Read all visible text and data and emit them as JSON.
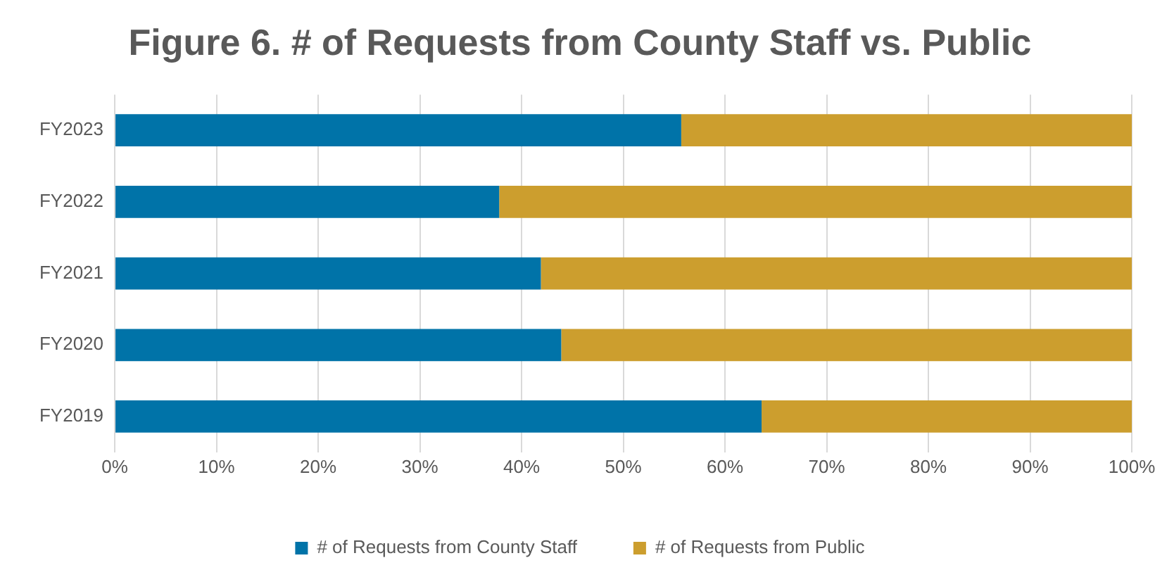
{
  "chart_data": {
    "type": "bar",
    "title": "Figure 6. # of Requests from County Staff vs. Public",
    "orientation": "horizontal",
    "stacked": true,
    "categories": [
      "FY2023",
      "FY2022",
      "FY2021",
      "FY2020",
      "FY2019"
    ],
    "series": [
      {
        "name": "# of Requests from County Staff",
        "color": "#0073a8",
        "values": [
          55.7,
          37.8,
          41.9,
          43.9,
          63.6
        ]
      },
      {
        "name": "# of Requests from Public",
        "color": "#cc9e2e",
        "values": [
          44.3,
          62.2,
          58.1,
          56.1,
          36.4
        ]
      }
    ],
    "xlim": [
      0,
      100
    ],
    "xticks": [
      {
        "value": 0,
        "label": "0%"
      },
      {
        "value": 10,
        "label": "10%"
      },
      {
        "value": 20,
        "label": "20%"
      },
      {
        "value": 30,
        "label": "30%"
      },
      {
        "value": 40,
        "label": "40%"
      },
      {
        "value": 50,
        "label": "50%"
      },
      {
        "value": 60,
        "label": "60%"
      },
      {
        "value": 70,
        "label": "70%"
      },
      {
        "value": 80,
        "label": "80%"
      },
      {
        "value": 90,
        "label": "90%"
      },
      {
        "value": 100,
        "label": "100%"
      }
    ],
    "grid": "x",
    "legend": "bottom"
  }
}
